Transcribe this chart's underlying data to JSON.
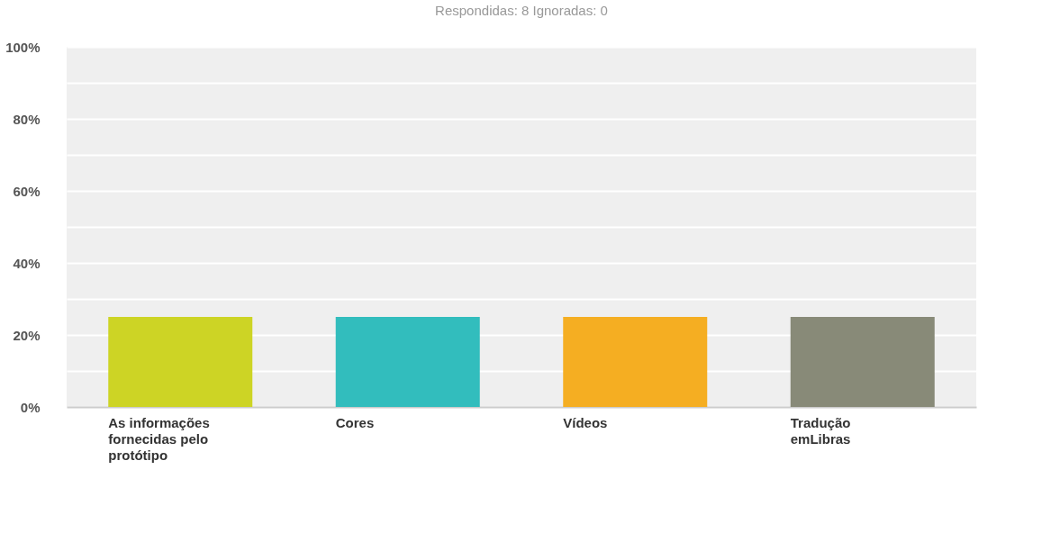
{
  "chart_data": {
    "type": "bar",
    "title": "Respondidas: 8    Ignoradas: 0",
    "categories": [
      "As informações fornecidas pelo protótipo",
      "Cores",
      "Vídeos",
      "Tradução emLibras"
    ],
    "values": [
      25,
      25,
      25,
      25
    ],
    "colors": [
      "#cdd425",
      "#32bdbd",
      "#f5ae22",
      "#888a78"
    ],
    "ylim": [
      0,
      100
    ],
    "yticks": [
      {
        "value": 0,
        "label": "0%"
      },
      {
        "value": 10,
        "label": null
      },
      {
        "value": 20,
        "label": "20%"
      },
      {
        "value": 30,
        "label": null
      },
      {
        "value": 40,
        "label": "40%"
      },
      {
        "value": 50,
        "label": null
      },
      {
        "value": 60,
        "label": "60%"
      },
      {
        "value": 70,
        "label": null
      },
      {
        "value": 80,
        "label": "80%"
      },
      {
        "value": 90,
        "label": null
      },
      {
        "value": 100,
        "label": "100%"
      }
    ],
    "grid": true
  }
}
